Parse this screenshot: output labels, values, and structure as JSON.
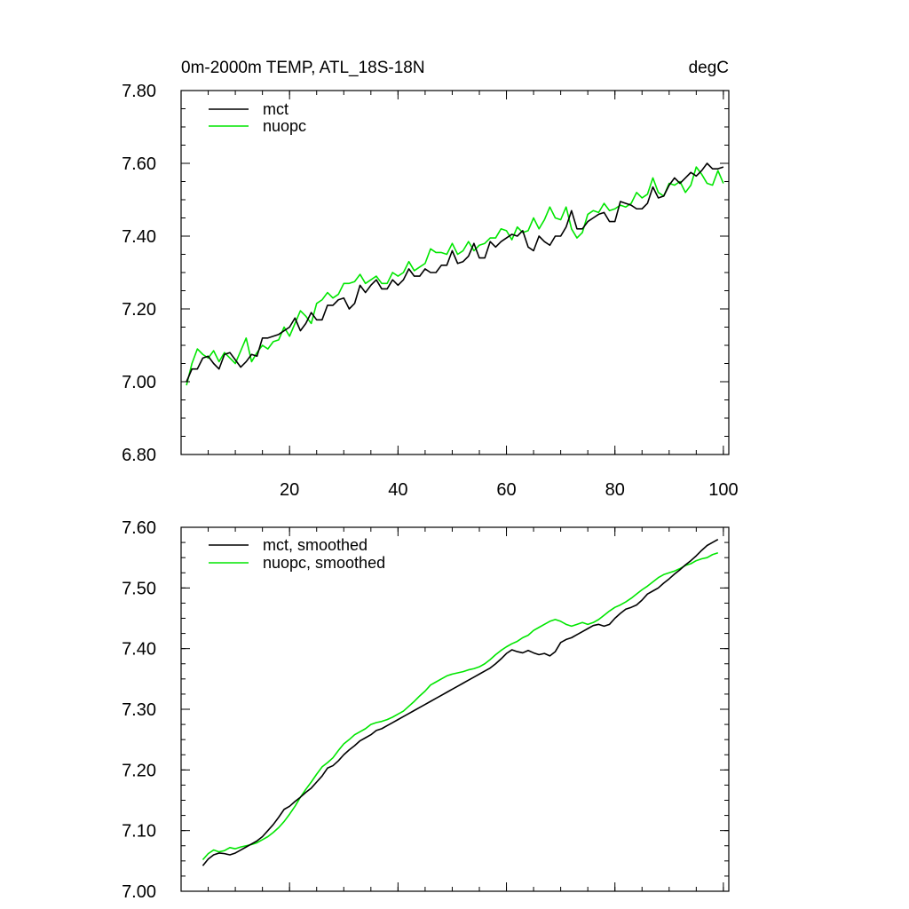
{
  "chart_data": [
    {
      "type": "line",
      "title_left": "0m-2000m TEMP, ATL_18S-18N",
      "title_right": "degC",
      "xlabel": "",
      "ylabel": "",
      "xlim": [
        0,
        101
      ],
      "ylim": [
        6.8,
        7.8
      ],
      "ymajor": [
        6.8,
        7.0,
        7.2,
        7.4,
        7.6,
        7.8
      ],
      "yminor_step": 0.05,
      "xmajor": [
        20,
        40,
        60,
        80,
        100
      ],
      "xminor_step": 5,
      "show_x_tick_labels": true,
      "y_tick_labels": [
        "6.80",
        "7.00",
        "7.20",
        "7.40",
        "7.60",
        "7.80"
      ],
      "x_tick_labels": [
        "20",
        "40",
        "60",
        "80",
        "100"
      ],
      "legend": [
        "mct",
        "nuopc"
      ],
      "series": [
        {
          "name": "mct",
          "color": "#000000",
          "x_start": 1,
          "values": [
            7.0,
            7.035,
            7.035,
            7.065,
            7.07,
            7.05,
            7.035,
            7.075,
            7.08,
            7.06,
            7.04,
            7.055,
            7.075,
            7.07,
            7.12,
            7.12,
            7.125,
            7.13,
            7.14,
            7.15,
            7.175,
            7.14,
            7.16,
            7.19,
            7.17,
            7.17,
            7.21,
            7.21,
            7.225,
            7.23,
            7.2,
            7.215,
            7.265,
            7.245,
            7.265,
            7.28,
            7.255,
            7.255,
            7.28,
            7.265,
            7.28,
            7.31,
            7.29,
            7.29,
            7.31,
            7.3,
            7.3,
            7.32,
            7.32,
            7.36,
            7.325,
            7.33,
            7.345,
            7.38,
            7.34,
            7.34,
            7.385,
            7.37,
            7.385,
            7.395,
            7.405,
            7.4,
            7.415,
            7.37,
            7.36,
            7.4,
            7.385,
            7.375,
            7.4,
            7.4,
            7.425,
            7.47,
            7.42,
            7.42,
            7.44,
            7.45,
            7.46,
            7.465,
            7.44,
            7.44,
            7.495,
            7.49,
            7.485,
            7.475,
            7.475,
            7.49,
            7.535,
            7.505,
            7.51,
            7.54,
            7.56,
            7.545,
            7.56,
            7.575,
            7.565,
            7.58,
            7.6,
            7.585,
            7.585,
            7.59
          ]
        },
        {
          "name": "nuopc",
          "color": "#00e600",
          "x_start": 1,
          "values": [
            6.99,
            7.05,
            7.09,
            7.075,
            7.065,
            7.085,
            7.055,
            7.08,
            7.065,
            7.05,
            7.085,
            7.12,
            7.055,
            7.08,
            7.1,
            7.09,
            7.11,
            7.115,
            7.15,
            7.125,
            7.16,
            7.195,
            7.18,
            7.16,
            7.215,
            7.225,
            7.245,
            7.23,
            7.24,
            7.27,
            7.27,
            7.275,
            7.295,
            7.27,
            7.28,
            7.29,
            7.27,
            7.27,
            7.3,
            7.29,
            7.3,
            7.33,
            7.305,
            7.315,
            7.325,
            7.365,
            7.355,
            7.355,
            7.35,
            7.38,
            7.35,
            7.36,
            7.385,
            7.36,
            7.375,
            7.38,
            7.395,
            7.395,
            7.42,
            7.415,
            7.39,
            7.425,
            7.41,
            7.415,
            7.45,
            7.42,
            7.445,
            7.48,
            7.45,
            7.445,
            7.48,
            7.42,
            7.395,
            7.41,
            7.46,
            7.47,
            7.465,
            7.49,
            7.47,
            7.475,
            7.485,
            7.48,
            7.49,
            7.52,
            7.505,
            7.515,
            7.56,
            7.52,
            7.51,
            7.545,
            7.54,
            7.55,
            7.52,
            7.54,
            7.59,
            7.57,
            7.545,
            7.54,
            7.58,
            7.545
          ]
        }
      ]
    },
    {
      "type": "line",
      "title_left": "",
      "title_right": "",
      "xlabel": "",
      "ylabel": "",
      "xlim": [
        0,
        101
      ],
      "ylim": [
        7.0,
        7.6
      ],
      "ymajor": [
        7.0,
        7.1,
        7.2,
        7.3,
        7.4,
        7.5,
        7.6
      ],
      "yminor_step": 0.025,
      "xmajor": [
        20,
        40,
        60,
        80,
        100
      ],
      "xminor_step": 5,
      "show_x_tick_labels": false,
      "y_tick_labels": [
        "7.00",
        "7.10",
        "7.20",
        "7.30",
        "7.40",
        "7.50",
        "7.60"
      ],
      "x_tick_labels": [],
      "legend": [
        "mct, smoothed",
        "nuopc, smoothed"
      ],
      "series": [
        {
          "name": "mct, smoothed",
          "color": "#000000",
          "x_start": 4,
          "values": [
            7.042,
            7.053,
            7.06,
            7.063,
            7.062,
            7.06,
            7.063,
            7.068,
            7.073,
            7.078,
            7.083,
            7.09,
            7.1,
            7.11,
            7.122,
            7.135,
            7.14,
            7.148,
            7.155,
            7.163,
            7.17,
            7.18,
            7.19,
            7.203,
            7.207,
            7.215,
            7.225,
            7.233,
            7.24,
            7.248,
            7.253,
            7.258,
            7.265,
            7.268,
            7.273,
            7.278,
            7.283,
            7.288,
            7.293,
            7.298,
            7.303,
            7.308,
            7.313,
            7.318,
            7.323,
            7.328,
            7.333,
            7.338,
            7.343,
            7.348,
            7.353,
            7.358,
            7.363,
            7.368,
            7.375,
            7.383,
            7.392,
            7.398,
            7.395,
            7.393,
            7.397,
            7.393,
            7.39,
            7.392,
            7.388,
            7.395,
            7.41,
            7.415,
            7.418,
            7.423,
            7.428,
            7.433,
            7.438,
            7.44,
            7.437,
            7.44,
            7.45,
            7.458,
            7.465,
            7.468,
            7.472,
            7.48,
            7.49,
            7.495,
            7.5,
            7.508,
            7.515,
            7.523,
            7.53,
            7.538,
            7.545,
            7.553,
            7.562,
            7.57,
            7.575,
            7.58
          ]
        },
        {
          "name": "nuopc, smoothed",
          "color": "#00e600",
          "x_start": 4,
          "values": [
            7.052,
            7.062,
            7.068,
            7.065,
            7.067,
            7.072,
            7.07,
            7.073,
            7.075,
            7.077,
            7.08,
            7.085,
            7.09,
            7.097,
            7.105,
            7.115,
            7.127,
            7.14,
            7.155,
            7.168,
            7.18,
            7.193,
            7.205,
            7.212,
            7.22,
            7.232,
            7.243,
            7.25,
            7.258,
            7.263,
            7.268,
            7.275,
            7.278,
            7.28,
            7.283,
            7.287,
            7.292,
            7.297,
            7.305,
            7.313,
            7.322,
            7.33,
            7.34,
            7.345,
            7.35,
            7.355,
            7.358,
            7.36,
            7.362,
            7.365,
            7.367,
            7.37,
            7.375,
            7.382,
            7.39,
            7.397,
            7.403,
            7.408,
            7.412,
            7.418,
            7.422,
            7.43,
            7.435,
            7.44,
            7.445,
            7.448,
            7.445,
            7.44,
            7.437,
            7.44,
            7.443,
            7.44,
            7.443,
            7.448,
            7.455,
            7.462,
            7.468,
            7.472,
            7.477,
            7.483,
            7.49,
            7.497,
            7.503,
            7.51,
            7.517,
            7.522,
            7.525,
            7.528,
            7.532,
            7.537,
            7.54,
            7.545,
            7.548,
            7.55,
            7.555,
            7.558
          ]
        }
      ]
    }
  ]
}
